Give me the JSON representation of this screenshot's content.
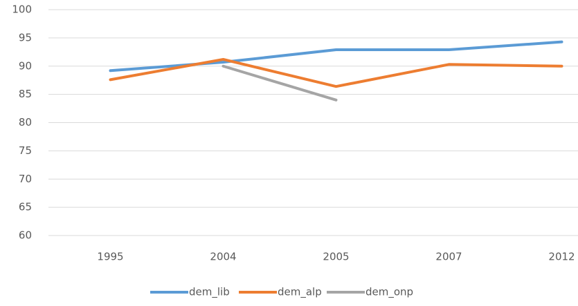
{
  "chart_data": {
    "type": "line",
    "categories": [
      "1995",
      "2004",
      "2005",
      "2007",
      "2012"
    ],
    "series": [
      {
        "name": "dem_lib",
        "color": "#5b9bd5",
        "values": [
          89.2,
          90.7,
          92.9,
          92.9,
          94.3
        ]
      },
      {
        "name": "dem_alp",
        "color": "#ed7d31",
        "values": [
          87.6,
          91.2,
          86.4,
          90.3,
          90.0
        ]
      },
      {
        "name": "dem_onp",
        "color": "#a5a5a5",
        "values": [
          null,
          90.0,
          84.0,
          null,
          null
        ]
      }
    ],
    "ylim": [
      60,
      100
    ],
    "yticks": [
      60,
      65,
      70,
      75,
      80,
      85,
      90,
      95,
      100
    ],
    "grid": true,
    "legend": "bottom"
  }
}
